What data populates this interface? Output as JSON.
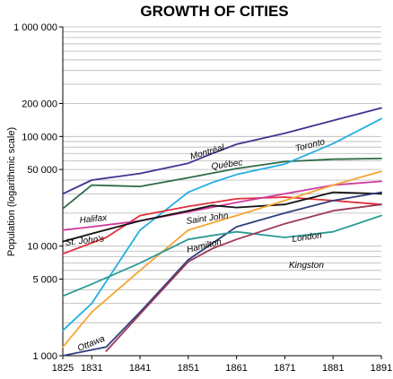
{
  "chart_data": {
    "type": "line",
    "title": "GROWTH OF CITIES",
    "xlabel": "",
    "ylabel": "Population (logarithmic scale)",
    "yscale": "log",
    "ylim": [
      1000,
      1000000
    ],
    "xlim": [
      1825,
      1891
    ],
    "grid": true,
    "x_ticks": [
      "1825",
      "1831",
      "1841",
      "1851",
      "1861",
      "1871",
      "1881",
      "1891"
    ],
    "y_ticks": [
      {
        "value": 1000,
        "label": "1 000"
      },
      {
        "value": 5000,
        "label": "5 000"
      },
      {
        "value": 10000,
        "label": "10 000"
      },
      {
        "value": 50000,
        "label": "50 000"
      },
      {
        "value": 100000,
        "label": "100 000"
      },
      {
        "value": 200000,
        "label": "200 000"
      },
      {
        "value": 1000000,
        "label": "1 000 000"
      }
    ],
    "series": [
      {
        "name": "Montréal",
        "color": "#3b3590",
        "x": [
          1825,
          1831,
          1841,
          1851,
          1856,
          1861,
          1871,
          1881,
          1891
        ],
        "y": [
          30000,
          40000,
          46000,
          57000,
          70000,
          85000,
          107000,
          140000,
          182000
        ]
      },
      {
        "name": "Québec",
        "color": "#2e6b46",
        "x": [
          1825,
          1831,
          1841,
          1851,
          1861,
          1871,
          1881,
          1891
        ],
        "y": [
          22000,
          36000,
          35000,
          42000,
          51000,
          59000,
          62000,
          63000
        ]
      },
      {
        "name": "Toronto",
        "color": "#23aee0",
        "x": [
          1825,
          1831,
          1841,
          1851,
          1856,
          1861,
          1871,
          1881,
          1891
        ],
        "y": [
          1700,
          3000,
          14000,
          31000,
          38000,
          45000,
          56000,
          86000,
          145000
        ]
      },
      {
        "name": "Saint John",
        "color": "#e0303b",
        "x": [
          1825,
          1834,
          1841,
          1851,
          1861,
          1871,
          1881,
          1891
        ],
        "y": [
          8500,
          12000,
          19000,
          23000,
          27000,
          28000,
          26000,
          24000
        ]
      },
      {
        "name": "Halifax",
        "color": "#cd3a9b",
        "x": [
          1825,
          1831,
          1841,
          1851,
          1861,
          1871,
          1881,
          1891
        ],
        "y": [
          14000,
          15000,
          17000,
          20500,
          25000,
          30000,
          36000,
          39000
        ]
      },
      {
        "name": "St. John's",
        "color": "#111111",
        "x": [
          1825,
          1831,
          1841,
          1851,
          1856,
          1861,
          1871,
          1881,
          1891
        ],
        "y": [
          11000,
          13000,
          17000,
          21000,
          23500,
          22500,
          24000,
          31000,
          30000
        ]
      },
      {
        "name": "Hamilton",
        "color": "#f4a533",
        "x": [
          1825,
          1831,
          1841,
          1851,
          1861,
          1871,
          1881,
          1891
        ],
        "y": [
          1200,
          2500,
          6000,
          14000,
          19000,
          26000,
          36000,
          48000
        ]
      },
      {
        "name": "London",
        "color": "#2f3f7c",
        "x": [
          1825,
          1834,
          1841,
          1851,
          1861,
          1871,
          1881,
          1891
        ],
        "y": [
          1000,
          1200,
          2500,
          7500,
          15000,
          20000,
          26000,
          31000
        ]
      },
      {
        "name": "Kingston",
        "color": "#2a9a94",
        "x": [
          1825,
          1831,
          1841,
          1851,
          1856,
          1861,
          1871,
          1881,
          1891
        ],
        "y": [
          3500,
          4500,
          7000,
          11500,
          12500,
          13500,
          12000,
          13500,
          19000
        ]
      },
      {
        "name": "Ottawa",
        "color": "#9c3a58",
        "x": [
          1834,
          1841,
          1851,
          1856,
          1861,
          1871,
          1881,
          1891
        ],
        "y": [
          1100,
          2400,
          7200,
          9500,
          11500,
          16000,
          21000,
          24000
        ]
      }
    ],
    "series_labels": [
      "Montréal",
      "Québec",
      "Toronto",
      "Saint John",
      "Halifax",
      "St. John's",
      "Hamilton",
      "London",
      "Kingston",
      "Ottawa"
    ]
  }
}
